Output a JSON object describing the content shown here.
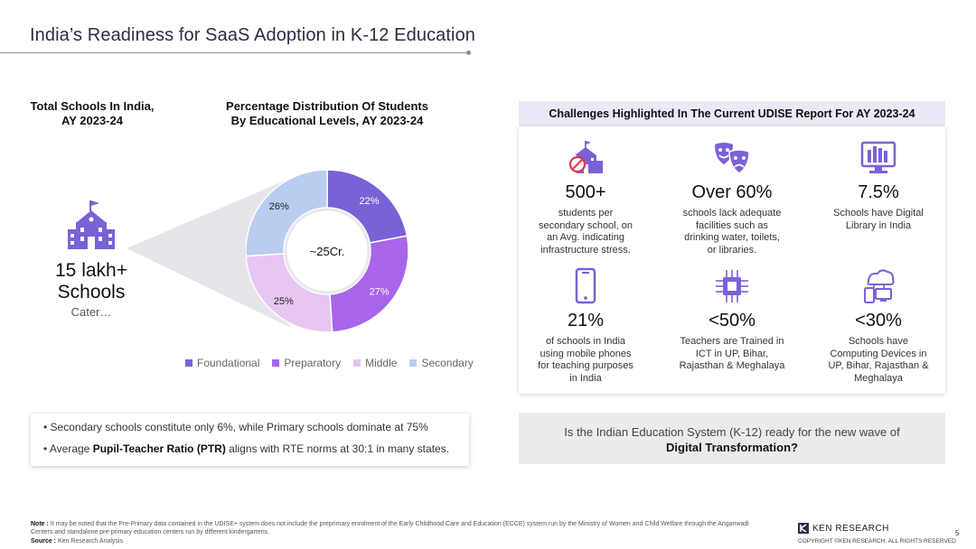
{
  "header": {
    "title": "India’s Readiness for SaaS Adoption in K-12 Education"
  },
  "left": {
    "schools_heading": [
      "Total Schools In India,",
      "AY 2023-24"
    ],
    "dist_heading": [
      "Percentage Distribution Of Students",
      "By Educational Levels, AY 2023-24"
    ],
    "total_schools": [
      "15 lakh+",
      "Schools"
    ],
    "caters_text": "Cater…",
    "donut_center": "~25Cr."
  },
  "chart_data": {
    "type": "pie",
    "title": "Percentage Distribution Of Students By Educational Levels, AY 2023-24",
    "center_label": "~25Cr.",
    "categories": [
      "Foundational",
      "Preparatory",
      "Middle",
      "Secondary"
    ],
    "values": [
      22,
      27,
      25,
      26
    ],
    "labels": [
      "22%",
      "27%",
      "25%",
      "26%"
    ],
    "colors": [
      "#7b61d6",
      "#a865ea",
      "#e6c6f0",
      "#b8cdf0"
    ],
    "label_colors": [
      "#ffffff",
      "#ffffff",
      "#222222",
      "#222222"
    ],
    "legend_position": "bottom"
  },
  "bullets": {
    "b1": "Secondary schools constitute only 6%, while Primary schools dominate at 75%",
    "b2_pre": "Average ",
    "b2_bold": "Pupil-Teacher Ratio (PTR)",
    "b2_post": " aligns with RTE norms at 30:1 in many states."
  },
  "challenges": {
    "heading": "Challenges Highlighted In The Current UDISE Report For AY 2023-24",
    "items": [
      {
        "icon": "school-no-icon",
        "num": "500+",
        "desc": [
          "students per",
          "secondary school, on",
          "an Avg. indicating",
          "infrastructure stress."
        ]
      },
      {
        "icon": "theatre-masks-icon",
        "num": "Over 60%",
        "desc": [
          "schools lack adequate",
          "facilities such as",
          "drinking water, toilets,",
          "or libraries."
        ]
      },
      {
        "icon": "digital-library-icon",
        "num": "7.5%",
        "desc": [
          "Schools have Digital",
          "Library in India"
        ]
      },
      {
        "icon": "mobile-phone-icon",
        "num": "21%",
        "desc": [
          "of schools in India",
          "using mobile phones",
          "for teaching purposes",
          "in India"
        ]
      },
      {
        "icon": "ict-chip-icon",
        "num": "<50%",
        "desc": [
          "Teachers are Trained in",
          "ICT in UP, Bihar,",
          "Rajasthan & Meghalaya"
        ]
      },
      {
        "icon": "computing-devices-icon",
        "num": "<30%",
        "desc": [
          "Schools have",
          "Computing Devices in",
          "UP, Bihar, Rajasthan &",
          "Meghalaya"
        ]
      }
    ]
  },
  "question": {
    "line1": "Is the Indian Education System (K-12) ready for the new wave of",
    "bold": "Digital Transformation?"
  },
  "footer": {
    "note_label": "Note :",
    "note_text": " It may be noted that the Pre-Primary data contained in the UDISE+ system does not include the preprimary enrolment of the Early Childhood Care and Education (ECCE) system run by the Ministry of Women and Child Welfare through the Anganwadi Centers and standalone pre-primary education centers run by different kindergartens.",
    "source_label": "Source :",
    "source_text": " Ken Research Analysis",
    "logo_text": "KEN RESEARCH",
    "copyright": "COPYRIGHT ©KEN RESEARCH. ALL RIGHTS RESERVED",
    "page": "5"
  },
  "colors": {
    "accent": "#7b61d6",
    "title": "#2a2e45",
    "header_band": "#e9eaf6"
  }
}
